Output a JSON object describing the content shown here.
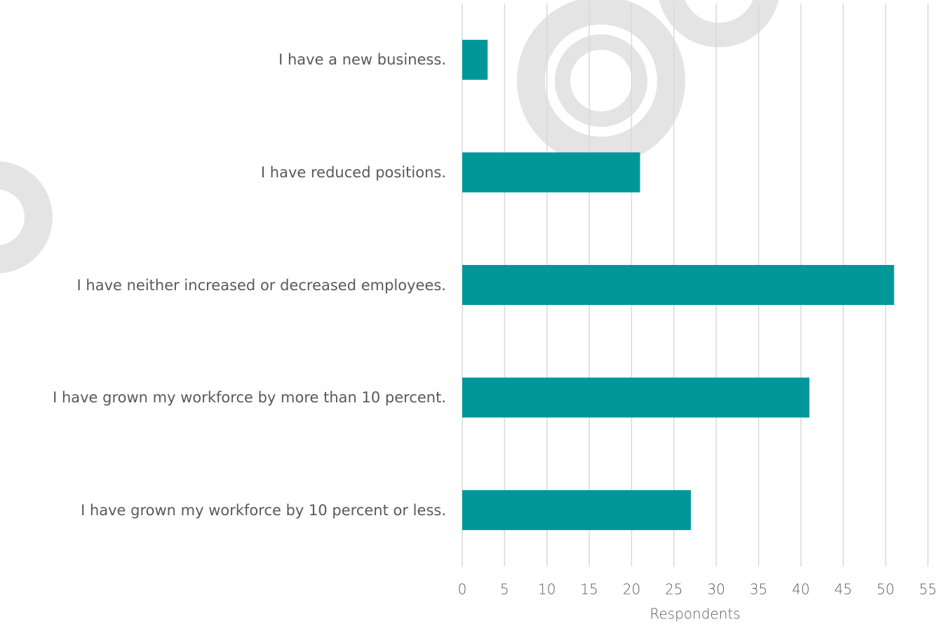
{
  "chart_data": {
    "type": "bar",
    "orientation": "horizontal",
    "categories": [
      "I have a new business.",
      "I have reduced positions.",
      "I have neither increased or decreased employees.",
      "I have grown my workforce by more than 10 percent.",
      "I have grown my workforce by 10 percent or less."
    ],
    "values": [
      3,
      21,
      51,
      41,
      27
    ],
    "color": "#00979a",
    "x_label": "Respondents",
    "xlim": [
      0,
      55
    ],
    "xticks": [
      0,
      5,
      10,
      15,
      20,
      25,
      30,
      35,
      40,
      45,
      50,
      55
    ],
    "grid": true
  }
}
